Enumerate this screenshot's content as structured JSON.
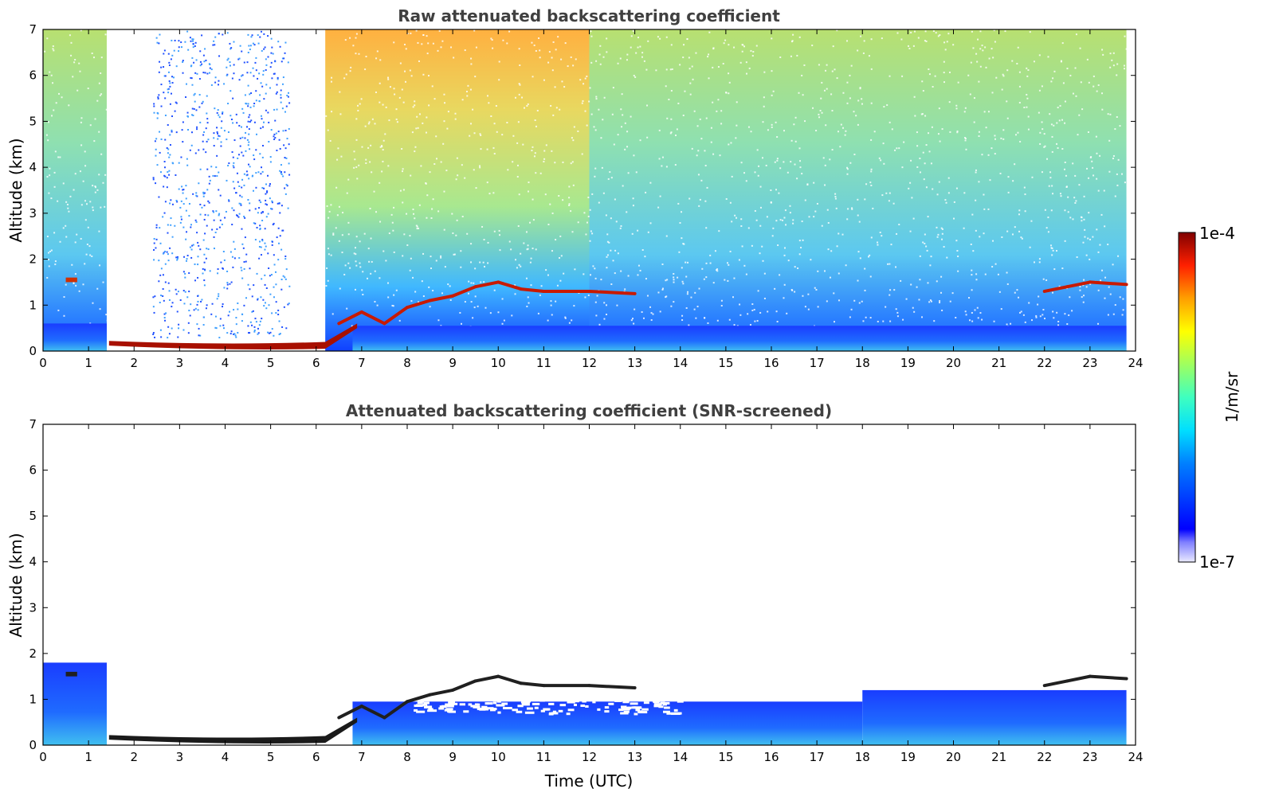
{
  "chart_data": [
    {
      "type": "heatmap",
      "title": "Raw attenuated backscattering coefficient",
      "xlabel": "",
      "ylabel": "Altitude (km)",
      "xlim": [
        0,
        24
      ],
      "ylim": [
        0,
        7
      ],
      "x_ticks": [
        "0",
        "1",
        "2",
        "3",
        "4",
        "5",
        "6",
        "7",
        "8",
        "9",
        "10",
        "11",
        "12",
        "13",
        "14",
        "15",
        "16",
        "17",
        "18",
        "19",
        "20",
        "21",
        "22",
        "23",
        "24"
      ],
      "y_ticks": [
        "0",
        "1",
        "2",
        "3",
        "4",
        "5",
        "6",
        "7"
      ],
      "data_end_hour": 23.8,
      "colorscale": "jet",
      "features": [
        {
          "name": "boundary layer / near-surface aerosol",
          "x_range": [
            0,
            23.8
          ],
          "altitude_km": [
            0,
            0.6
          ]
        },
        {
          "name": "fog/low cloud base",
          "x_range": [
            1.4,
            6.8
          ],
          "altitude_km": [
            0.05,
            0.25
          ]
        },
        {
          "name": "elevated cloud layer",
          "x_range": [
            6.5,
            13.5
          ],
          "altitude_km": [
            0.5,
            1.8
          ]
        },
        {
          "name": "cloud layer",
          "x_range": [
            22.0,
            23.8
          ],
          "altitude_km": [
            1.3,
            1.55
          ]
        },
        {
          "name": "small cloud",
          "x_range": [
            0.5,
            0.75
          ],
          "altitude_km": [
            1.5,
            1.6
          ]
        },
        {
          "name": "signal blocked above fog",
          "x_range": [
            1.4,
            6.2
          ],
          "altitude_km": [
            0.25,
            7
          ]
        }
      ]
    },
    {
      "type": "heatmap",
      "title": "Attenuated backscattering coefficient (SNR-screened)",
      "xlabel": "Time (UTC)",
      "ylabel": "Altitude (km)",
      "xlim": [
        0,
        24
      ],
      "ylim": [
        0,
        7
      ],
      "x_ticks": [
        "0",
        "1",
        "2",
        "3",
        "4",
        "5",
        "6",
        "7",
        "8",
        "9",
        "10",
        "11",
        "12",
        "13",
        "14",
        "15",
        "16",
        "17",
        "18",
        "19",
        "20",
        "21",
        "22",
        "23",
        "24"
      ],
      "y_ticks": [
        "0",
        "1",
        "2",
        "3",
        "4",
        "5",
        "6",
        "7"
      ],
      "data_end_hour": 23.8,
      "colorscale": "jet",
      "features": [
        {
          "name": "screened aerosol layer",
          "x_range": [
            0,
            23.8
          ],
          "altitude_km": [
            0,
            1.5
          ]
        },
        {
          "name": "fog/low cloud base",
          "x_range": [
            1.4,
            6.8
          ],
          "altitude_km": [
            0.05,
            0.25
          ]
        },
        {
          "name": "elevated cloud layer",
          "x_range": [
            6.5,
            13.5
          ],
          "altitude_km": [
            0.5,
            1.8
          ]
        },
        {
          "name": "cloud layer",
          "x_range": [
            22.0,
            23.8
          ],
          "altitude_km": [
            1.3,
            1.55
          ]
        }
      ]
    }
  ],
  "colorbar": {
    "label": "1/m/sr",
    "max_label": "1e-4",
    "min_label": "1e-7",
    "scale": "log"
  },
  "colors": {
    "axis": "#000000",
    "title": "#404040",
    "background": "#ffffff"
  }
}
